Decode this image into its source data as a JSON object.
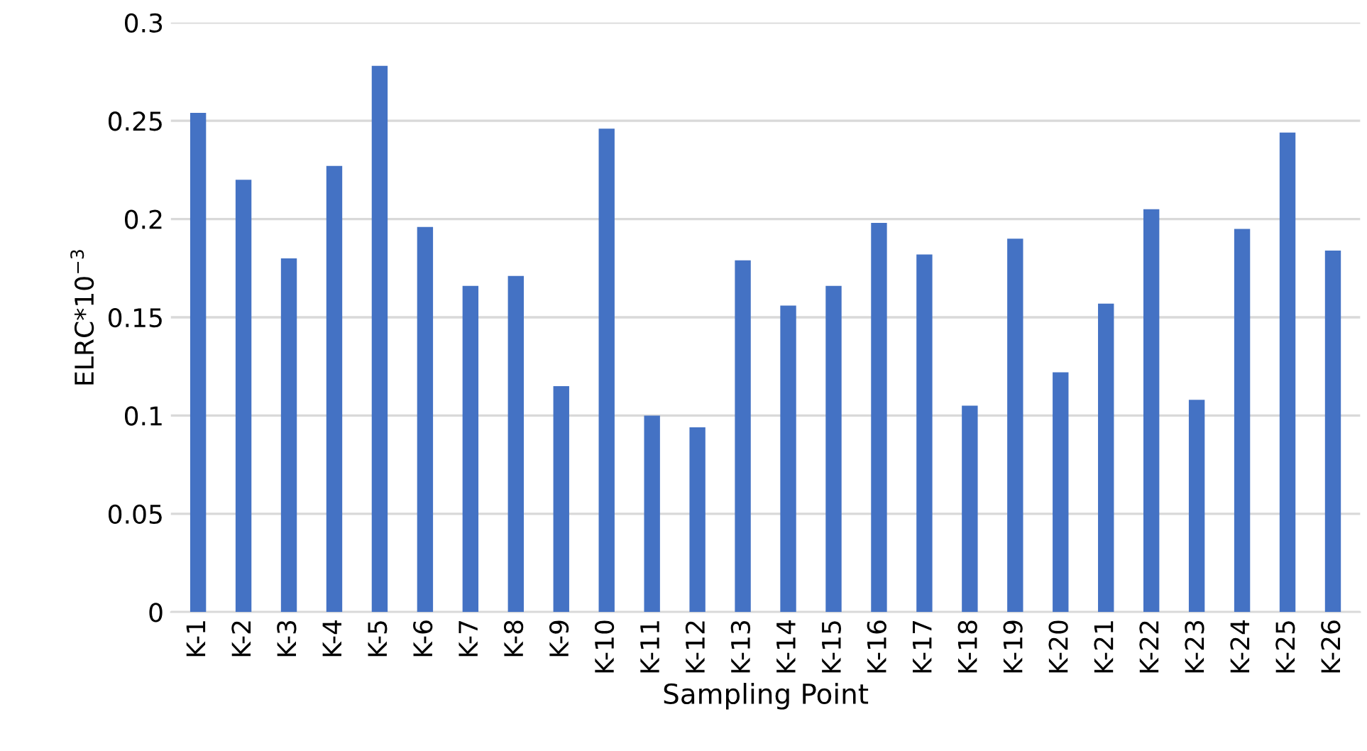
{
  "chart_data": {
    "type": "bar",
    "xlabel": "Sampling Point",
    "ylabel": "ELRC*10$^{−3}$",
    "categories": [
      "K-1",
      "K-2",
      "K-3",
      "K-4",
      "K-5",
      "K-6",
      "K-7",
      "K-8",
      "K-9",
      "K-10",
      "K-11",
      "K-12",
      "K-13",
      "K-14",
      "K-15",
      "K-16",
      "K-17",
      "K-18",
      "K-19",
      "K-20",
      "K-21",
      "K-22",
      "K-23",
      "K-24",
      "K-25",
      "K-26"
    ],
    "values": [
      0.254,
      0.22,
      0.18,
      0.227,
      0.278,
      0.196,
      0.166,
      0.171,
      0.115,
      0.246,
      0.1,
      0.094,
      0.179,
      0.156,
      0.166,
      0.198,
      0.182,
      0.105,
      0.19,
      0.122,
      0.157,
      0.205,
      0.108,
      0.195,
      0.244,
      0.184
    ],
    "color": "#4472c4",
    "ylim": [
      0,
      0.3
    ],
    "yticks": [
      {
        "value": 0,
        "label": "0"
      },
      {
        "value": 0.05,
        "label": "0.05"
      },
      {
        "value": 0.1,
        "label": "0.1"
      },
      {
        "value": 0.15,
        "label": "0.15"
      },
      {
        "value": 0.2,
        "label": "0.2"
      },
      {
        "value": 0.25,
        "label": "0.25"
      },
      {
        "value": 0.3,
        "label": "0.3"
      }
    ],
    "grid": "y",
    "legend": false
  }
}
